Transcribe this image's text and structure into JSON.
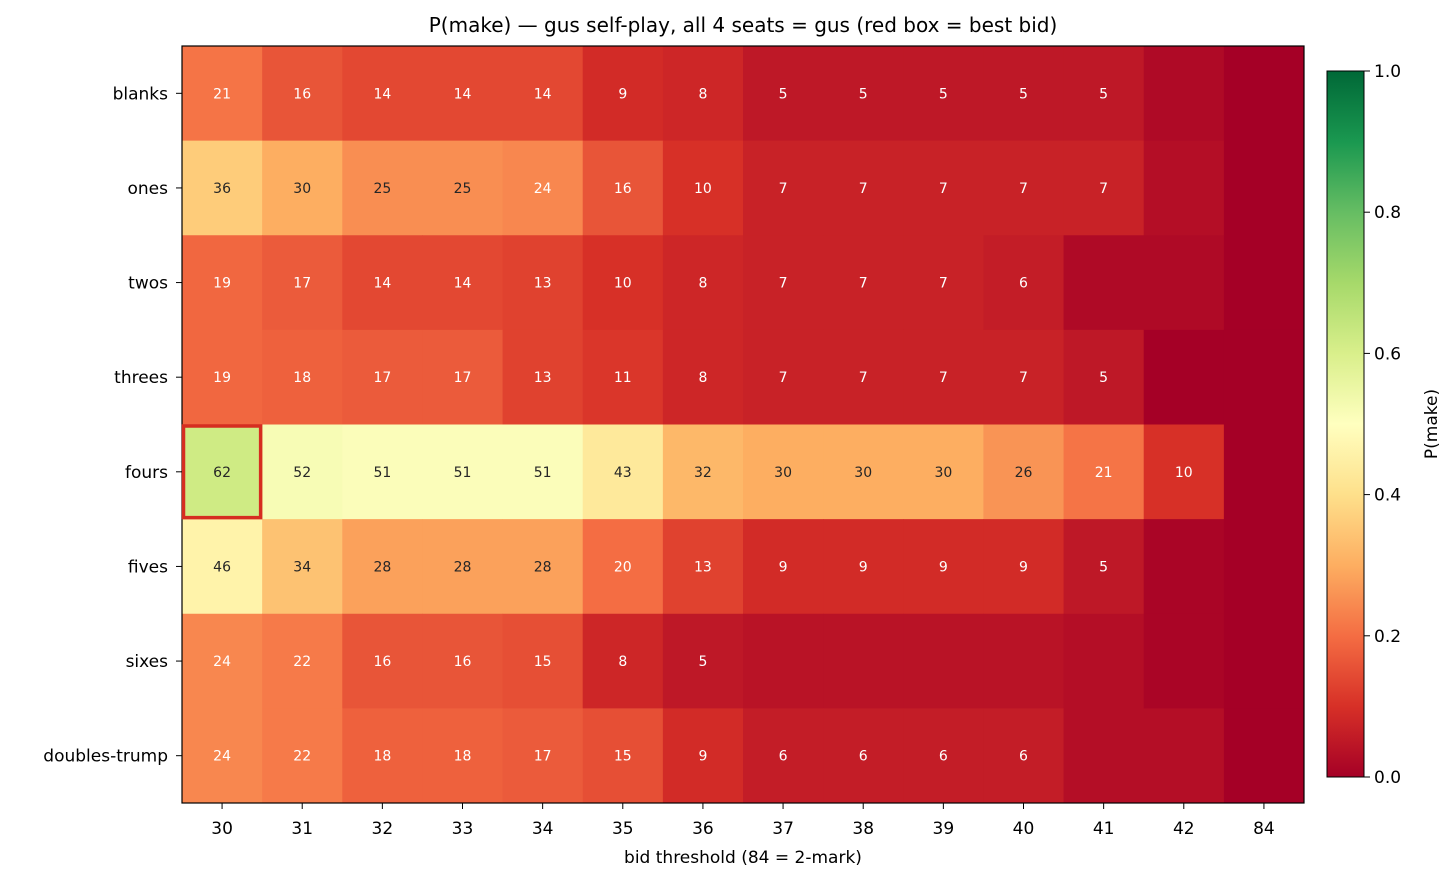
{
  "chart_data": {
    "type": "heatmap",
    "title": "P(make) — gus self-play, all 4 seats = gus  (red box = best bid)",
    "xlabel": "bid threshold (84 = 2-mark)",
    "ylabel": "",
    "x_categories": [
      "30",
      "31",
      "32",
      "33",
      "34",
      "35",
      "36",
      "37",
      "38",
      "39",
      "40",
      "41",
      "42",
      "84"
    ],
    "y_categories": [
      "blanks",
      "ones",
      "twos",
      "threes",
      "fours",
      "fives",
      "sixes",
      "doubles-trump"
    ],
    "values_percent": [
      [
        21,
        16,
        14,
        14,
        14,
        9,
        8,
        5,
        5,
        5,
        5,
        5,
        2,
        0
      ],
      [
        36,
        30,
        25,
        25,
        24,
        16,
        10,
        7,
        7,
        7,
        7,
        7,
        3,
        0
      ],
      [
        19,
        17,
        14,
        14,
        13,
        10,
        8,
        7,
        7,
        7,
        6,
        2,
        2,
        0
      ],
      [
        19,
        18,
        17,
        17,
        13,
        11,
        8,
        7,
        7,
        7,
        7,
        5,
        0,
        0
      ],
      [
        62,
        52,
        51,
        51,
        51,
        43,
        32,
        30,
        30,
        30,
        26,
        21,
        10,
        0
      ],
      [
        46,
        34,
        28,
        28,
        28,
        20,
        13,
        9,
        9,
        9,
        9,
        5,
        1,
        0
      ],
      [
        24,
        22,
        16,
        16,
        15,
        8,
        5,
        4,
        4,
        4,
        4,
        3,
        1,
        0
      ],
      [
        24,
        22,
        18,
        18,
        17,
        15,
        9,
        6,
        6,
        6,
        6,
        3,
        3,
        0
      ]
    ],
    "label_min_percent": 5,
    "colormap": "RdYlGn",
    "colormap_stops": [
      "#a50026",
      "#d73027",
      "#f46d43",
      "#fdae61",
      "#fee08b",
      "#ffffbf",
      "#d9ef8b",
      "#a6d96a",
      "#66bd63",
      "#1a9850",
      "#006837"
    ],
    "vmin": 0,
    "vmax": 1,
    "best_bid": {
      "row": "fours",
      "col": "30"
    },
    "highlight_color": "#d62d20",
    "colorbar": {
      "label": "P(make)",
      "ticks": [
        "0.0",
        "0.2",
        "0.4",
        "0.6",
        "0.8",
        "1.0"
      ]
    }
  }
}
